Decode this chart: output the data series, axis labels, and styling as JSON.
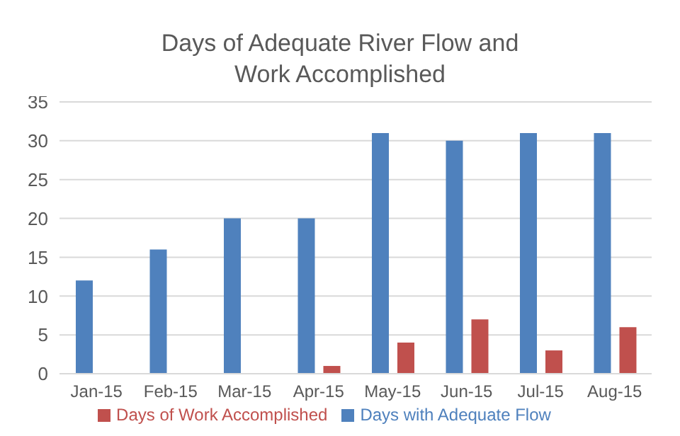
{
  "chart_data": {
    "type": "bar",
    "title": "Days of Adequate River Flow and Work Accomplished",
    "categories": [
      "Jan-15",
      "Feb-15",
      "Mar-15",
      "Apr-15",
      "May-15",
      "Jun-15",
      "Jul-15",
      "Aug-15"
    ],
    "series": [
      {
        "name": "Days with Adequate Flow",
        "color": "#4f81bd",
        "values": [
          12,
          16,
          20,
          20,
          31,
          30,
          31,
          31
        ]
      },
      {
        "name": "Days of Work Accomplished",
        "color": "#c0504d",
        "values": [
          null,
          null,
          null,
          1,
          4,
          7,
          3,
          6
        ]
      }
    ],
    "ylim": [
      0,
      35
    ],
    "yticks": [
      0,
      5,
      10,
      15,
      20,
      25,
      30,
      35
    ],
    "grid": "y",
    "legend": "bottom"
  }
}
